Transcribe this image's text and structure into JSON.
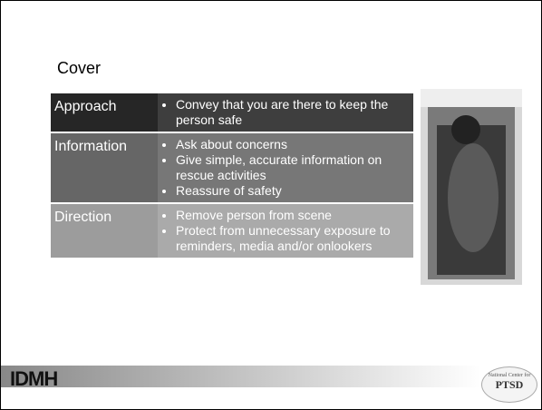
{
  "slide": {
    "title": "Cover",
    "table": {
      "rows": [
        {
          "label": "Approach",
          "bullets": [
            "Convey that you are there to keep the person safe"
          ]
        },
        {
          "label": "Information",
          "bullets": [
            "Ask about concerns",
            "Give simple, accurate information on rescue activities",
            "Reassure of safety"
          ]
        },
        {
          "label": "Direction",
          "bullets": [
            "Remove person from scene",
            "Protect from unnecessary exposure to reminders, media and/or onlookers"
          ]
        }
      ]
    },
    "footer": {
      "left_logo": "IDMH",
      "right_logo_top": "National Center for",
      "right_logo": "PTSD"
    }
  }
}
